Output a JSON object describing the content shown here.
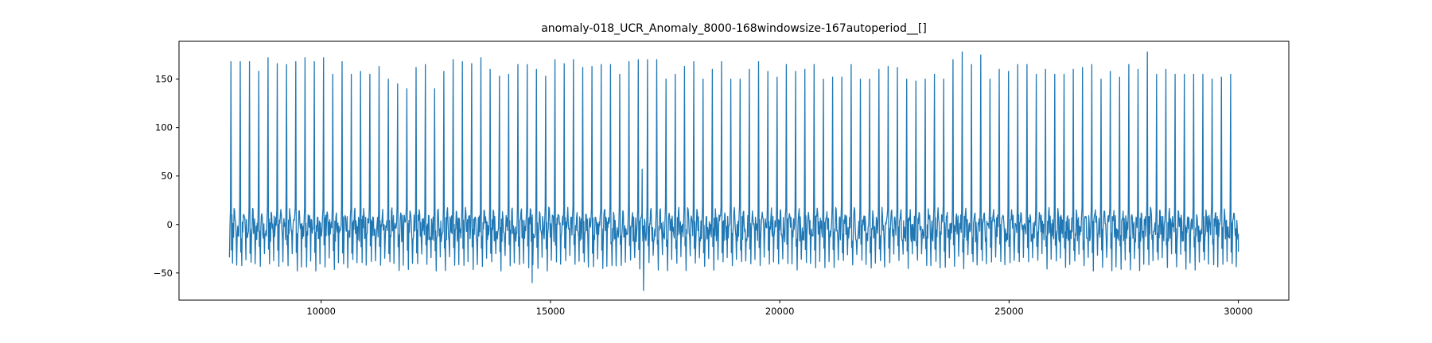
{
  "chart_data": {
    "type": "line",
    "title": "anomaly-018_UCR_Anomaly_8000-168windowsize-167autoperiod__[]",
    "xlabel": "",
    "ylabel": "",
    "xlim": [
      6900,
      31100
    ],
    "ylim": [
      -78,
      189
    ],
    "xticks": [
      10000,
      15000,
      20000,
      25000,
      30000
    ],
    "xtick_labels": [
      "10000",
      "15000",
      "20000",
      "25000",
      "30000"
    ],
    "yticks": [
      -50,
      0,
      50,
      100,
      150
    ],
    "ytick_labels": [
      "−50",
      "0",
      "50",
      "100",
      "150"
    ],
    "grid": false,
    "legend": "none",
    "line_color": "#1f77b4",
    "series": [
      {
        "x_start": 8000,
        "x_end": 30000,
        "beat_spacing_approx": 167,
        "peak_values_approx": [
          168,
          168,
          168,
          158,
          172,
          166,
          165,
          168,
          172,
          168,
          172,
          155,
          168,
          155,
          158,
          155,
          163,
          150,
          145,
          140,
          162,
          165,
          140,
          158,
          170,
          168,
          166,
          172,
          160,
          153,
          155,
          165,
          165,
          160,
          153,
          170,
          166,
          170,
          162,
          163,
          165,
          165,
          155,
          168,
          170,
          170,
          170,
          150,
          155,
          163,
          168,
          150,
          160,
          168,
          150,
          150,
          160,
          168,
          158,
          152,
          165,
          158,
          160,
          165,
          150,
          152,
          152,
          165,
          150,
          150,
          160,
          163,
          162,
          150,
          148,
          150,
          155,
          150,
          170,
          178,
          165,
          175,
          150,
          160,
          158,
          165,
          165,
          155,
          160,
          155,
          155,
          160,
          162,
          165,
          150,
          158,
          152,
          165,
          160,
          178,
          155,
          160,
          155,
          155,
          155,
          155,
          150,
          152,
          155
        ],
        "baseline_range_approx": [
          -48,
          18
        ],
        "global_min_approx": -68,
        "global_min_x_approx": 17000,
        "annotated_min_x_approx": 14600,
        "annotated_min_value_approx": -60,
        "notable_secondary_peak_x_approx": 17000,
        "notable_secondary_peak_value_approx": 57
      }
    ]
  }
}
